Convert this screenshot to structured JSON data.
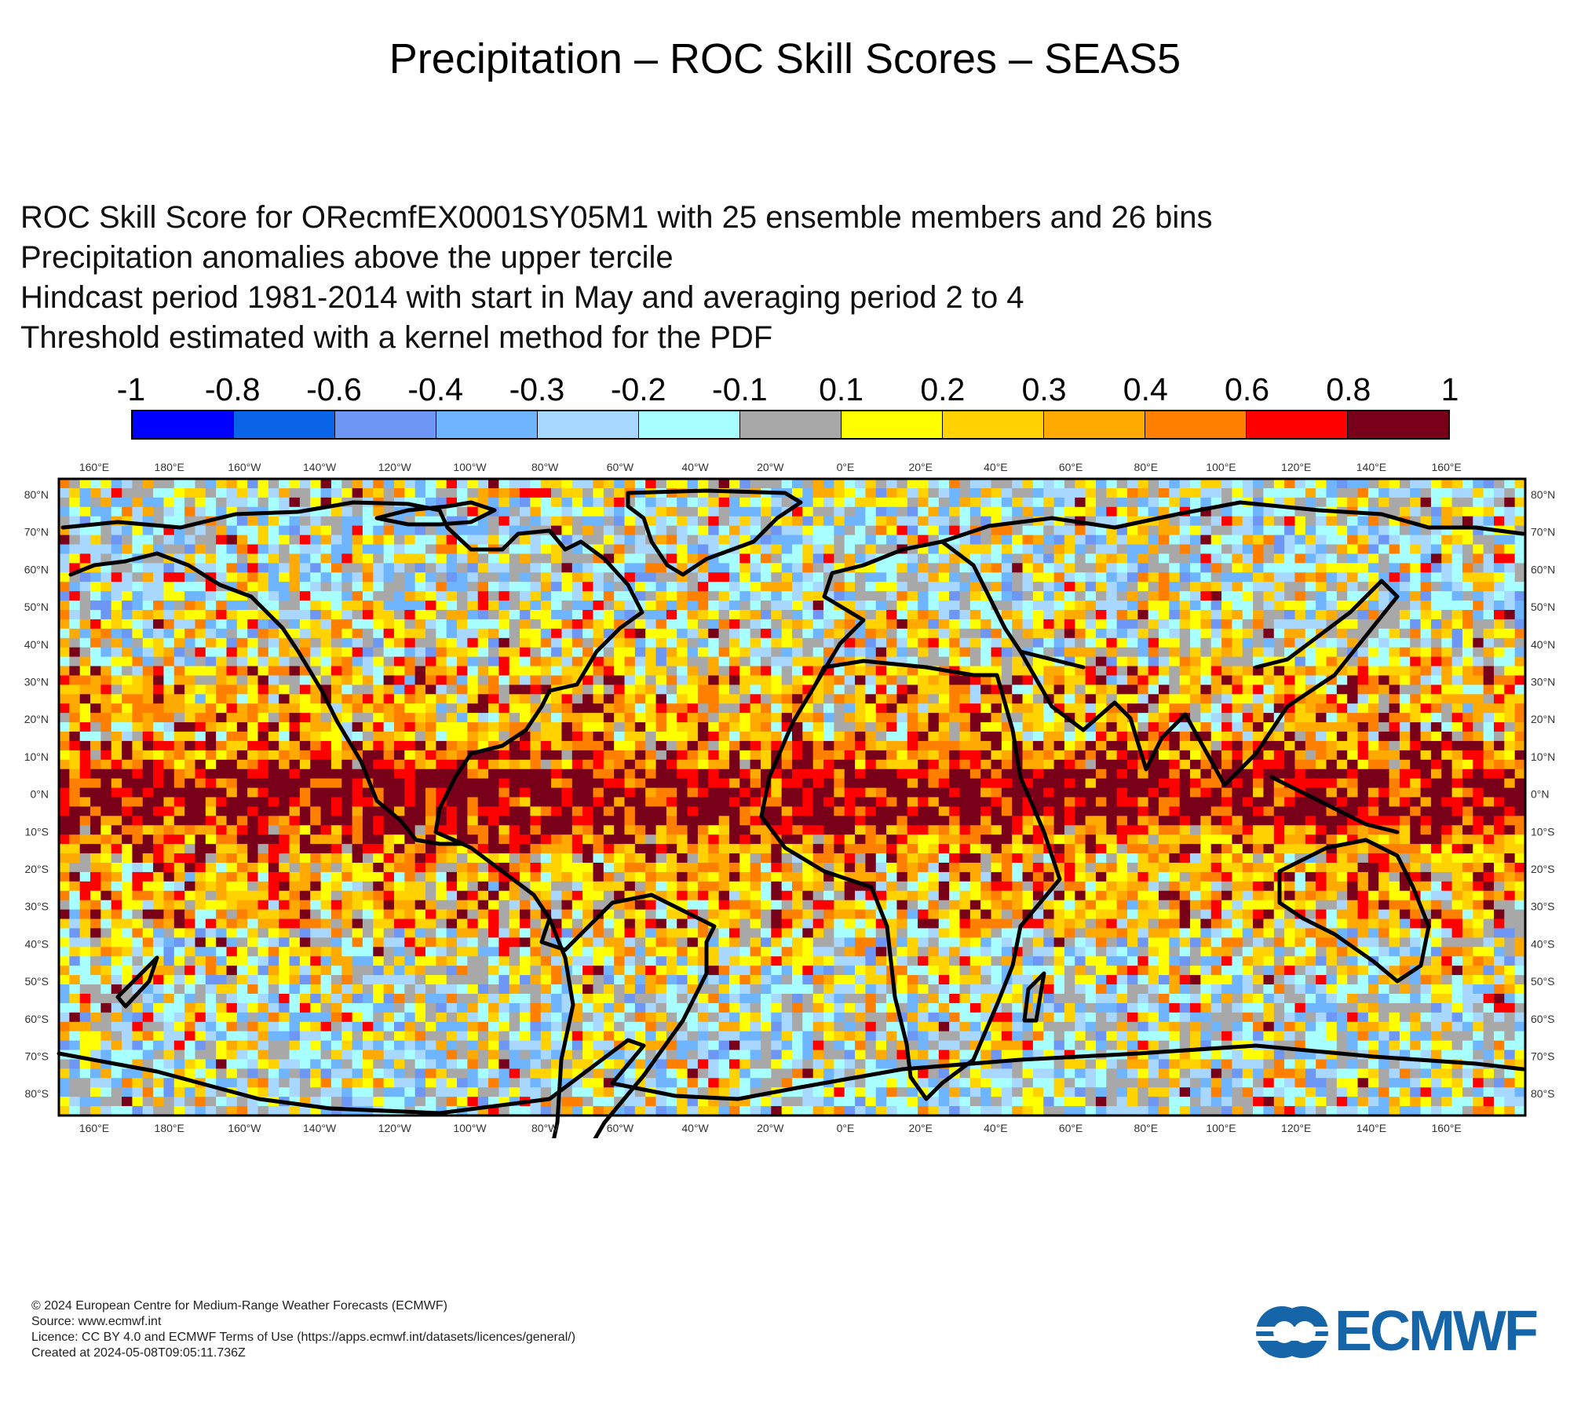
{
  "title": "Precipitation – ROC Skill Scores – SEAS5",
  "subtitle_lines": [
    "ROC Skill Score for ORecmfEX0001SY05M1 with 25 ensemble members and 26 bins",
    "Precipitation anomalies above the upper tercile",
    "Hindcast period 1981-2014 with start in May and averaging period  2 to  4",
    "Threshold estimated with a kernel method for the PDF"
  ],
  "legend": {
    "labels": [
      "-1",
      "-0.8",
      "-0.6",
      "-0.4",
      "-0.3",
      "-0.2",
      "-0.1",
      "0.1",
      "0.2",
      "0.3",
      "0.4",
      "0.6",
      "0.8",
      "1"
    ],
    "colors": [
      "#0000ff",
      "#0a64e8",
      "#6e96f5",
      "#6eb4ff",
      "#a8d8ff",
      "#a8ffff",
      "#a8a8a8",
      "#ffff00",
      "#ffd200",
      "#ffaa00",
      "#ff8000",
      "#ff0000",
      "#780018"
    ]
  },
  "map": {
    "top_longitude_labels": [
      "160°E",
      "180°E",
      "160°W",
      "140°W",
      "120°W",
      "100°W",
      "80°W",
      "60°W",
      "40°W",
      "20°W",
      "0°E",
      "20°E",
      "40°E",
      "60°E",
      "80°E",
      "100°E",
      "120°E",
      "140°E",
      "160°E"
    ],
    "bottom_longitude_labels": [
      "160°E",
      "180°E",
      "160°W",
      "140°W",
      "120°W",
      "100°W",
      "80°W",
      "60°W",
      "40°W",
      "20°W",
      "0°E",
      "20°E",
      "40°E",
      "60°E",
      "80°E",
      "100°E",
      "120°E",
      "140°E",
      "160°E"
    ],
    "left_latitude_labels": [
      "80°N",
      "70°N",
      "60°N",
      "50°N",
      "40°N",
      "30°N",
      "20°N",
      "10°N",
      "0°N",
      "10°S",
      "20°S",
      "30°S",
      "40°S",
      "50°S",
      "60°S",
      "70°S",
      "80°S"
    ],
    "right_latitude_labels": [
      "80°N",
      "70°N",
      "60°N",
      "50°N",
      "40°N",
      "30°N",
      "20°N",
      "10°N",
      "0°N",
      "10°S",
      "20°S",
      "30°S",
      "40°S",
      "50°S",
      "60°S",
      "70°S",
      "80°S"
    ]
  },
  "footer": {
    "copyright": "© 2024 European Centre for Medium-Range Weather Forecasts (ECMWF)",
    "source": "Source: www.ecmwf.int",
    "licence": "Licence: CC BY 4.0 and ECMWF Terms of Use (https://apps.ecmwf.int/datasets/licences/general/)",
    "created": "Created at 2024-05-08T09:05:11.736Z"
  },
  "logo": {
    "text": "ECMWF",
    "color": "#1565a8"
  }
}
